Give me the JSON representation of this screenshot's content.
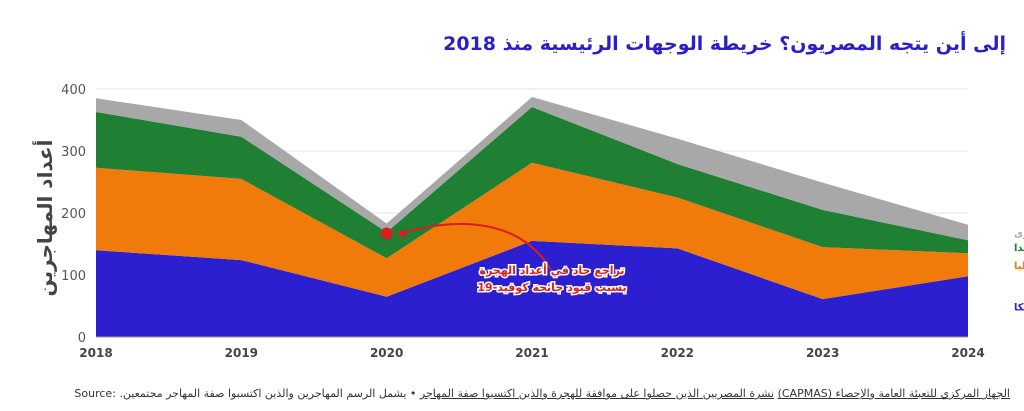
{
  "chart_data": {
    "type": "area",
    "title": "إلى أين يتجه المصريون؟ خريطة الوجهات الرئيسية منذ 2018",
    "xlabel": "",
    "ylabel": "أعداد المهاجرين",
    "x": [
      2018,
      2019,
      2020,
      2021,
      2022,
      2023,
      2024
    ],
    "ylim": [
      0,
      400
    ],
    "yticks": [
      0,
      100,
      200,
      300,
      400
    ],
    "stacked": true,
    "grid": true,
    "series": [
      {
        "name": "أمريكا",
        "color": "#2b1fd0",
        "values": [
          140,
          124,
          65,
          155,
          143,
          61,
          98
        ]
      },
      {
        "name": "إيطاليا",
        "color": "#f07a0a",
        "values": [
          133,
          131,
          62,
          126,
          82,
          84,
          37
        ]
      },
      {
        "name": "كندا",
        "color": "#1f8033",
        "values": [
          90,
          68,
          42,
          90,
          54,
          60,
          21
        ]
      },
      {
        "name": "دول أخرى",
        "color": "#a8a8a8",
        "values": [
          22,
          27,
          14,
          16,
          41,
          44,
          25
        ]
      }
    ],
    "annotation": {
      "point": {
        "x": 2020,
        "y": 167
      },
      "lines": [
        "تراجع حاد في أعداد الهجرة",
        "بسبب قيود جائحة كوفيد-19"
      ],
      "color": "#d81f1f"
    }
  },
  "source": {
    "label": "Source",
    "colon": ":",
    "agency": "الجهاز المركزي للتعبئة العامة والإحصاء (CAPMAS)",
    "bulletin": "نشرة المصريين الذين حصلوا على موافقة للهجرة والذين اكتسبوا صفة المهاجر",
    "bullet": "•",
    "note": "يشمل الرسم المهاجرين والذين اكتسبوا صفة المهاجر مجتمعين."
  }
}
